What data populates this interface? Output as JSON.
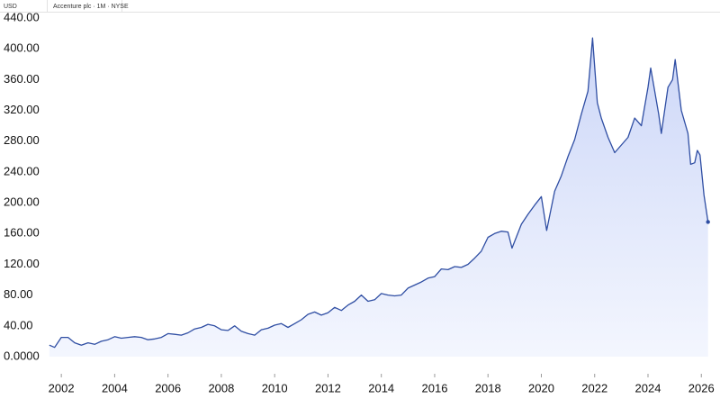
{
  "chart_data": {
    "type": "area",
    "y_label": "USD",
    "subtitle": "Accenture plc · 1M · NYSE",
    "color": "#2f4ea3",
    "grid": false,
    "xlim": [
      1999.7,
      2026.7
    ],
    "ylim": [
      0,
      440
    ],
    "xticks": [
      2002,
      2004,
      2006,
      2008,
      2010,
      2012,
      2014,
      2016,
      2018,
      2020,
      2022,
      2024,
      2026
    ],
    "yticks": [
      {
        "value": 0,
        "label": "0.0000"
      },
      {
        "value": 40,
        "label": "40.00"
      },
      {
        "value": 80,
        "label": "80.00"
      },
      {
        "value": 120,
        "label": "120.00"
      },
      {
        "value": 160,
        "label": "160.00"
      },
      {
        "value": 200,
        "label": "200.00"
      },
      {
        "value": 240,
        "label": "240.00"
      },
      {
        "value": 280,
        "label": "280.00"
      },
      {
        "value": 320,
        "label": "320.00"
      },
      {
        "value": 360,
        "label": "360.00"
      },
      {
        "value": 400,
        "label": "400.00"
      },
      {
        "value": 440,
        "label": "440.00"
      }
    ],
    "series": [
      {
        "name": "Accenture plc",
        "x": [
          2001.55,
          2001.75,
          2002.0,
          2002.25,
          2002.5,
          2002.75,
          2003.0,
          2003.25,
          2003.5,
          2003.75,
          2004.0,
          2004.25,
          2004.5,
          2004.75,
          2005.0,
          2005.25,
          2005.5,
          2005.75,
          2006.0,
          2006.25,
          2006.5,
          2006.75,
          2007.0,
          2007.25,
          2007.5,
          2007.75,
          2008.0,
          2008.25,
          2008.5,
          2008.75,
          2009.0,
          2009.25,
          2009.5,
          2009.75,
          2010.0,
          2010.25,
          2010.5,
          2010.75,
          2011.0,
          2011.25,
          2011.5,
          2011.75,
          2012.0,
          2012.25,
          2012.5,
          2012.75,
          2013.0,
          2013.25,
          2013.5,
          2013.75,
          2014.0,
          2014.25,
          2014.5,
          2014.75,
          2015.0,
          2015.25,
          2015.5,
          2015.75,
          2016.0,
          2016.25,
          2016.5,
          2016.75,
          2017.0,
          2017.25,
          2017.5,
          2017.75,
          2018.0,
          2018.25,
          2018.5,
          2018.75,
          2018.9,
          2019.25,
          2019.5,
          2019.75,
          2020.0,
          2020.2,
          2020.5,
          2020.75,
          2021.0,
          2021.25,
          2021.5,
          2021.75,
          2021.92,
          2022.1,
          2022.25,
          2022.5,
          2022.75,
          2023.0,
          2023.25,
          2023.5,
          2023.75,
          2024.0,
          2024.1,
          2024.4,
          2024.5,
          2024.75,
          2024.92,
          2025.02,
          2025.25,
          2025.5,
          2025.6,
          2025.75,
          2025.85,
          2025.95,
          2026.1,
          2026.25
        ],
        "values": [
          15,
          12,
          25,
          25,
          18,
          15,
          18,
          16,
          20,
          22,
          26,
          24,
          25,
          26,
          25,
          22,
          23,
          25,
          30,
          29,
          28,
          31,
          36,
          38,
          42,
          40,
          35,
          34,
          40,
          33,
          30,
          28,
          35,
          37,
          41,
          43,
          38,
          43,
          48,
          55,
          58,
          54,
          57,
          64,
          60,
          67,
          72,
          80,
          72,
          74,
          82,
          80,
          79,
          80,
          89,
          93,
          97,
          102,
          104,
          114,
          113,
          117,
          116,
          120,
          128,
          137,
          155,
          160,
          163,
          162,
          141,
          172,
          185,
          197,
          208,
          164,
          215,
          235,
          260,
          282,
          315,
          345,
          414,
          330,
          310,
          285,
          265,
          275,
          285,
          310,
          300,
          350,
          375,
          315,
          290,
          350,
          360,
          386,
          320,
          290,
          250,
          252,
          268,
          262,
          210,
          175
        ]
      }
    ]
  }
}
